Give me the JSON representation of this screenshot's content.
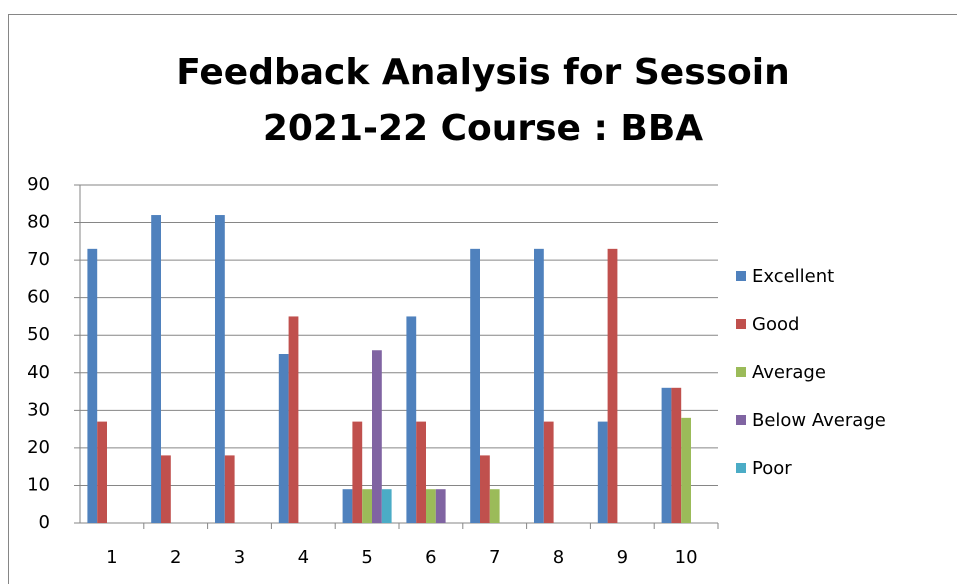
{
  "chart_data": {
    "type": "bar",
    "title": [
      "Feedback Analysis for Sessoin",
      "2021-22 Course : BBA"
    ],
    "categories": [
      "1",
      "2",
      "3",
      "4",
      "5",
      "6",
      "7",
      "8",
      "9",
      "10"
    ],
    "series": [
      {
        "name": "Excellent",
        "color": "#4f81bd",
        "values": [
          73,
          82,
          82,
          45,
          9,
          55,
          73,
          73,
          27,
          36
        ]
      },
      {
        "name": "Good",
        "color": "#c0504d",
        "values": [
          27,
          18,
          18,
          55,
          27,
          27,
          18,
          27,
          73,
          36
        ]
      },
      {
        "name": "Average",
        "color": "#9bbb59",
        "values": [
          0,
          0,
          0,
          0,
          9,
          9,
          9,
          0,
          0,
          28
        ]
      },
      {
        "name": "Below Average",
        "color": "#8064a2",
        "values": [
          0,
          0,
          0,
          0,
          46,
          9,
          0,
          0,
          0,
          0
        ]
      },
      {
        "name": "Poor",
        "color": "#4bacc6",
        "values": [
          0,
          0,
          0,
          0,
          9,
          0,
          0,
          0,
          0,
          0
        ]
      }
    ],
    "ylim": [
      0,
      90
    ],
    "yticks": [
      0,
      10,
      20,
      30,
      40,
      50,
      60,
      70,
      80,
      90
    ],
    "grid": true,
    "legend": "right"
  }
}
